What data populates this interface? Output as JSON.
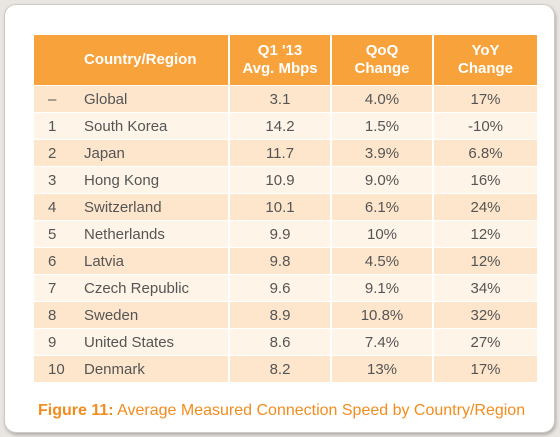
{
  "table": {
    "headers": {
      "country_region": "Country/Region",
      "avg_line1": "Q1 '13",
      "avg_line2": "Avg. Mbps",
      "qoq_line1": "QoQ",
      "qoq_line2": "Change",
      "yoy_line1": "YoY",
      "yoy_line2": "Change"
    },
    "rows": [
      {
        "rank": "–",
        "country": "Global",
        "avg": "3.1",
        "qoq": "4.0%",
        "yoy": "17%"
      },
      {
        "rank": "1",
        "country": "South Korea",
        "avg": "14.2",
        "qoq": "1.5%",
        "yoy": "-10%"
      },
      {
        "rank": "2",
        "country": "Japan",
        "avg": "11.7",
        "qoq": "3.9%",
        "yoy": "6.8%"
      },
      {
        "rank": "3",
        "country": "Hong Kong",
        "avg": "10.9",
        "qoq": "9.0%",
        "yoy": "16%"
      },
      {
        "rank": "4",
        "country": "Switzerland",
        "avg": "10.1",
        "qoq": "6.1%",
        "yoy": "24%"
      },
      {
        "rank": "5",
        "country": "Netherlands",
        "avg": "9.9",
        "qoq": "10%",
        "yoy": "12%"
      },
      {
        "rank": "6",
        "country": "Latvia",
        "avg": "9.8",
        "qoq": "4.5%",
        "yoy": "12%"
      },
      {
        "rank": "7",
        "country": "Czech Republic",
        "avg": "9.6",
        "qoq": "9.1%",
        "yoy": "34%"
      },
      {
        "rank": "8",
        "country": "Sweden",
        "avg": "8.9",
        "qoq": "10.8%",
        "yoy": "32%"
      },
      {
        "rank": "9",
        "country": "United States",
        "avg": "8.6",
        "qoq": "7.4%",
        "yoy": "27%"
      },
      {
        "rank": "10",
        "country": "Denmark",
        "avg": "8.2",
        "qoq": "13%",
        "yoy": "17%"
      }
    ]
  },
  "caption": {
    "label": "Figure 11:",
    "text": " Average Measured Connection Speed by Country/Region"
  },
  "colors": {
    "header": "#f7a23a",
    "row_dark": "#fde6cc",
    "row_light": "#fef4e8",
    "caption": "#f28c1e"
  }
}
